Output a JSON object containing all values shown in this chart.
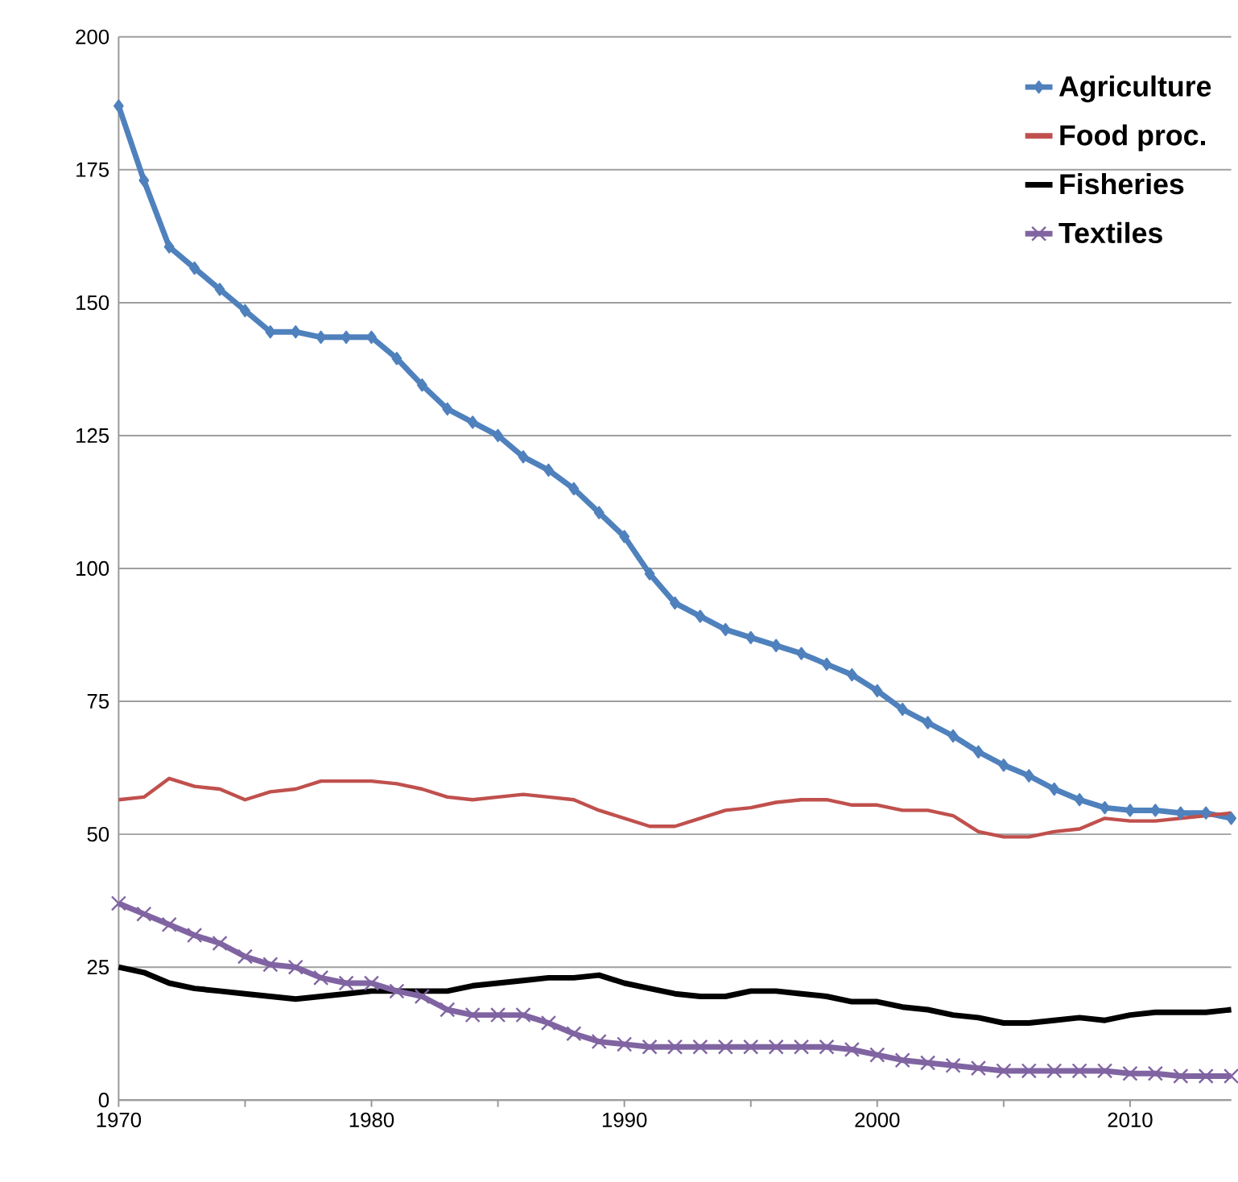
{
  "chart_data": {
    "type": "line",
    "x": [
      1970,
      1971,
      1972,
      1973,
      1974,
      1975,
      1976,
      1977,
      1978,
      1979,
      1980,
      1981,
      1982,
      1983,
      1984,
      1985,
      1986,
      1987,
      1988,
      1989,
      1990,
      1991,
      1992,
      1993,
      1994,
      1995,
      1996,
      1997,
      1998,
      1999,
      2000,
      2001,
      2002,
      2003,
      2004,
      2005,
      2006,
      2007,
      2008,
      2009,
      2010,
      2011,
      2012,
      2013,
      2014
    ],
    "series": [
      {
        "name": "Agriculture",
        "color": "#4f81bd",
        "marker": "diamond",
        "values": [
          187,
          173,
          160.5,
          156.5,
          152.5,
          148.5,
          144.5,
          144.5,
          143.5,
          143.5,
          143.5,
          139.5,
          134.5,
          130,
          127.5,
          125,
          121,
          118.5,
          115,
          110.5,
          106,
          99,
          93.5,
          91,
          88.5,
          87,
          85.5,
          84,
          82,
          80,
          77,
          73.5,
          71,
          68.5,
          65.5,
          63,
          61,
          58.5,
          56.5,
          55,
          54.5,
          54.5,
          54,
          54,
          53
        ]
      },
      {
        "name": "Food proc.",
        "color": "#c0504d",
        "marker": "none",
        "values": [
          56.5,
          57,
          60.5,
          59,
          58.5,
          56.5,
          58,
          58.5,
          60,
          60,
          60,
          59.5,
          58.5,
          57,
          56.5,
          57,
          57.5,
          57,
          56.5,
          54.5,
          53,
          51.5,
          51.5,
          53,
          54.5,
          55,
          56,
          56.5,
          56.5,
          55.5,
          55.5,
          54.5,
          54.5,
          53.5,
          50.5,
          49.5,
          49.5,
          50.5,
          51,
          53,
          52.5,
          52.5,
          53,
          53.5,
          54
        ]
      },
      {
        "name": "Fisheries",
        "color": "#000000",
        "marker": "none",
        "values": [
          25,
          24,
          22,
          21,
          20.5,
          20,
          19.5,
          19,
          19.5,
          20,
          20.5,
          20.5,
          20.5,
          20.5,
          21.5,
          22,
          22.5,
          23,
          23,
          23.5,
          22,
          21,
          20,
          19.5,
          19.5,
          20.5,
          20.5,
          20,
          19.5,
          18.5,
          18.5,
          17.5,
          17,
          16,
          15.5,
          14.5,
          14.5,
          15,
          15.5,
          15,
          16,
          16.5,
          16.5,
          16.5,
          17
        ]
      },
      {
        "name": "Textiles",
        "color": "#8064a2",
        "marker": "cross",
        "values": [
          37,
          35,
          33,
          31,
          29.5,
          27,
          25.5,
          25,
          23,
          22,
          22,
          20.5,
          19.5,
          17,
          16,
          16,
          16,
          14.5,
          12.5,
          11,
          10.5,
          10,
          10,
          10,
          10,
          10,
          10,
          10,
          10,
          9.5,
          8.5,
          7.5,
          7,
          6.5,
          6,
          5.5,
          5.5,
          5.5,
          5.5,
          5.5,
          5,
          5,
          4.5,
          4.5,
          4.5
        ]
      }
    ],
    "xlim": [
      1970,
      2014
    ],
    "xticks": [
      1970,
      {
        "value": 1975,
        "label": null
      },
      1980,
      {
        "value": 1985,
        "label": null
      },
      1990,
      {
        "value": 1995,
        "label": null
      },
      2000,
      {
        "value": 2005,
        "label": null
      },
      2010
    ],
    "ylim": [
      0,
      200
    ],
    "yticks": [
      0,
      25,
      50,
      75,
      100,
      125,
      150,
      175,
      200
    ],
    "grid": "y",
    "legend": "top right",
    "line_style": "solid"
  }
}
